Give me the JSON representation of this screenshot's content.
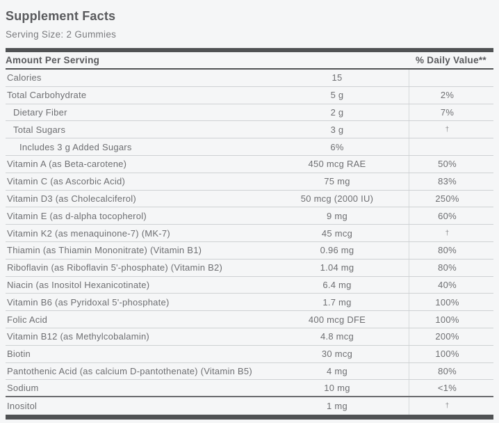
{
  "title": "Supplement Facts",
  "serving_size": "Serving Size: 2 Gummies",
  "table": {
    "header": {
      "amount_col": "Amount Per Serving",
      "dv_col": "% Daily Value**"
    },
    "rows": [
      {
        "name": "Calories",
        "amount": "15",
        "dv": "",
        "indent": 0
      },
      {
        "name": "Total Carbohydrate",
        "amount": "5 g",
        "dv": "2%",
        "indent": 0
      },
      {
        "name": "Dietary Fiber",
        "amount": "2 g",
        "dv": "7%",
        "indent": 1
      },
      {
        "name": "Total Sugars",
        "amount": "3 g",
        "dv": "†",
        "indent": 1
      },
      {
        "name": "Includes 3 g Added Sugars",
        "amount": "6%",
        "dv": "",
        "indent": 2
      },
      {
        "name": "Vitamin A (as Beta-carotene)",
        "amount": "450 mcg RAE",
        "dv": "50%",
        "indent": 0
      },
      {
        "name": "Vitamin C (as Ascorbic Acid)",
        "amount": "75 mg",
        "dv": "83%",
        "indent": 0
      },
      {
        "name": "Vitamin D3 (as Cholecalciferol)",
        "amount": "50 mcg (2000 IU)",
        "dv": "250%",
        "indent": 0
      },
      {
        "name": "Vitamin E (as d-alpha tocopherol)",
        "amount": "9 mg",
        "dv": "60%",
        "indent": 0
      },
      {
        "name": "Vitamin K2 (as menaquinone-7) (MK-7)",
        "amount": "45 mcg",
        "dv": "†",
        "indent": 0
      },
      {
        "name": "Thiamin (as Thiamin Mononitrate) (Vitamin B1)",
        "amount": "0.96 mg",
        "dv": "80%",
        "indent": 0
      },
      {
        "name": "Riboflavin (as Riboflavin 5'-phosphate) (Vitamin B2)",
        "amount": "1.04 mg",
        "dv": "80%",
        "indent": 0
      },
      {
        "name": "Niacin (as Inositol Hexanicotinate)",
        "amount": "6.4 mg",
        "dv": "40%",
        "indent": 0
      },
      {
        "name": "Vitamin B6 (as Pyridoxal 5'-phosphate)",
        "amount": "1.7 mg",
        "dv": "100%",
        "indent": 0
      },
      {
        "name": "Folic Acid",
        "amount": "400 mcg DFE",
        "dv": "100%",
        "indent": 0
      },
      {
        "name": "Vitamin B12 (as Methylcobalamin)",
        "amount": "4.8 mcg",
        "dv": "200%",
        "indent": 0
      },
      {
        "name": "Biotin",
        "amount": "30 mcg",
        "dv": "100%",
        "indent": 0
      },
      {
        "name": "Pantothenic Acid (as calcium D-pantothenate) (Vitamin B5)",
        "amount": "4 mg",
        "dv": "80%",
        "indent": 0
      },
      {
        "name": "Sodium",
        "amount": "10 mg",
        "dv": "<1%",
        "indent": 0,
        "divider_below": "medium"
      },
      {
        "name": "Inositol",
        "amount": "1 mg",
        "dv": "†",
        "indent": 0,
        "no_divider_below": true
      }
    ]
  },
  "colors": {
    "background": "#f5f6f7",
    "bar": "#505254",
    "heading": "#595a5d",
    "text": "#6d6e71",
    "subtext": "#7a7b7e",
    "separator": "#ced1d3",
    "column_rule": "#d6d9db",
    "medium_divider": "#6a6b6e"
  }
}
